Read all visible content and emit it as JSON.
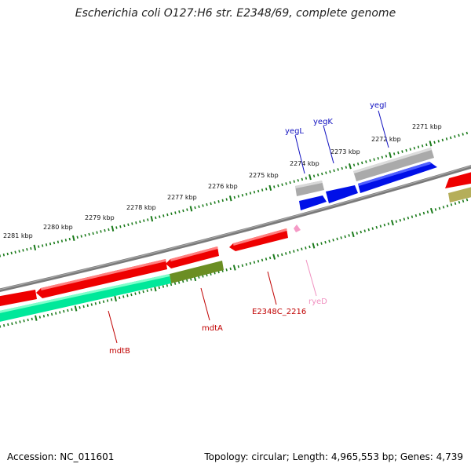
{
  "title": "Escherichia coli O127:H6 str. E2348/69, complete genome",
  "footer": {
    "accession": "Accession: NC_011601",
    "summary": "Topology: circular; Length: 4,965,553 bp; Genes: 4,739"
  },
  "colors": {
    "backbone": "#808080",
    "tick": "#1a7a1a",
    "red": "#ee0000",
    "blue": "#0000e0",
    "gray": "#b0b0b0",
    "green": "#00e89a",
    "olive": "#6b8e23",
    "khaki": "#b5ae5a",
    "pink": "#f59ac6",
    "label_red": "#c00000",
    "label_blue": "#1010c0",
    "label_pink": "#f090c0"
  },
  "scale_ticks": [
    {
      "label": "2281 kbp"
    },
    {
      "label": "2280 kbp"
    },
    {
      "label": "2279 kbp"
    },
    {
      "label": "2278 kbp"
    },
    {
      "label": "2277 kbp"
    },
    {
      "label": "2276 kbp"
    },
    {
      "label": "2275 kbp"
    },
    {
      "label": "2274 kbp"
    },
    {
      "label": "2273 kbp"
    },
    {
      "label": "2272 kbp"
    },
    {
      "label": "2271 kbp"
    }
  ],
  "gene_labels": [
    {
      "name": "yegL",
      "color": "blue"
    },
    {
      "name": "yegK",
      "color": "blue"
    },
    {
      "name": "yegI",
      "color": "blue"
    },
    {
      "name": "E2348C_2216",
      "color": "red"
    },
    {
      "name": "ryeD",
      "color": "pink"
    },
    {
      "name": "mdtA",
      "color": "red"
    },
    {
      "name": "mdtB",
      "color": "red"
    }
  ]
}
